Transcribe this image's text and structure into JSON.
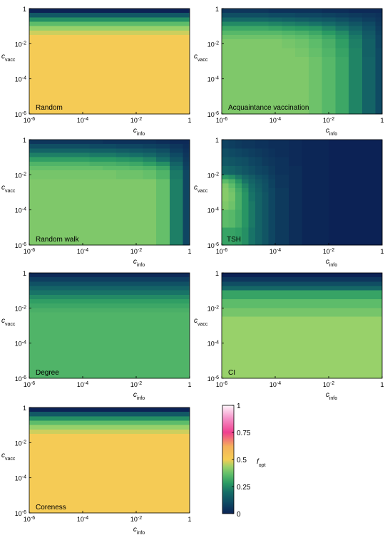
{
  "figure": {
    "colorbar": {
      "label_main": "f",
      "label_sub": "opt",
      "ticks": [
        {
          "value": 1,
          "label": "1"
        },
        {
          "value": 0.75,
          "label": "0.75"
        },
        {
          "value": 0.5,
          "label": "0.5"
        },
        {
          "value": 0.25,
          "label": "0.25"
        },
        {
          "value": 0,
          "label": "0"
        }
      ],
      "colormap": [
        {
          "v": 0.0,
          "color": "#0c2255"
        },
        {
          "v": 0.1,
          "color": "#0f4a63"
        },
        {
          "v": 0.2,
          "color": "#166e67"
        },
        {
          "v": 0.28,
          "color": "#2a9a63"
        },
        {
          "v": 0.36,
          "color": "#5dbc6a"
        },
        {
          "v": 0.43,
          "color": "#98d16a"
        },
        {
          "v": 0.5,
          "color": "#f5cd54"
        },
        {
          "v": 0.62,
          "color": "#f4b15b"
        },
        {
          "v": 0.75,
          "color": "#f03f8f"
        },
        {
          "v": 0.88,
          "color": "#f592c8"
        },
        {
          "v": 1.0,
          "color": "#fff6fb"
        }
      ]
    },
    "axis_ticks": {
      "x": [
        {
          "exp": -6,
          "base": "10",
          "sup": "-6"
        },
        {
          "exp": -4,
          "base": "10",
          "sup": "-4"
        },
        {
          "exp": -2,
          "base": "10",
          "sup": "-2"
        },
        {
          "exp": 0,
          "base": "1",
          "sup": ""
        }
      ],
      "y": [
        {
          "exp": 0,
          "base": "1",
          "sup": ""
        },
        {
          "exp": -2,
          "base": "10",
          "sup": "-2"
        },
        {
          "exp": -4,
          "base": "10",
          "sup": "-4"
        },
        {
          "exp": -6,
          "base": "10",
          "sup": "-6"
        }
      ],
      "xlabel_main": "c",
      "xlabel_sub": "info",
      "ylabel_main": "c",
      "ylabel_sub": "vacc"
    }
  },
  "chart_data": [
    {
      "type": "heatmap",
      "name": "Random",
      "xlabel": "c_info",
      "ylabel": "c_vacc",
      "x_log10_range": [
        -6,
        0
      ],
      "y_log10_range": [
        -6,
        0
      ],
      "colorbar_label": "f_opt",
      "vlim": [
        0,
        1
      ],
      "grid": false,
      "y_rows_top_to_bottom": [
        {
          "y_log10": [
            -0.25,
            0
          ],
          "f_opt": 0.0
        },
        {
          "y_log10": [
            -0.5,
            -0.25
          ],
          "f_opt": 0.14
        },
        {
          "y_log10": [
            -0.75,
            -0.5
          ],
          "f_opt": 0.26
        },
        {
          "y_log10": [
            -1.0,
            -0.75
          ],
          "f_opt": 0.36
        },
        {
          "y_log10": [
            -1.25,
            -1.0
          ],
          "f_opt": 0.43
        },
        {
          "y_log10": [
            -1.5,
            -1.25
          ],
          "f_opt": 0.47
        },
        {
          "y_log10": [
            -6,
            -1.5
          ],
          "f_opt": 0.51
        }
      ]
    },
    {
      "type": "heatmap",
      "name": "Acquaintance vaccination",
      "xlabel": "c_info",
      "ylabel": "c_vacc",
      "x_log10_range": [
        -6,
        0
      ],
      "y_log10_range": [
        -6,
        0
      ],
      "colorbar_label": "f_opt",
      "vlim": [
        0,
        1
      ],
      "grid": false,
      "x_boundaries_log10": [
        -6,
        -4.25,
        -3.75,
        -3.25,
        -2.75,
        -2.25,
        -1.75,
        -1.25,
        -0.75,
        -0.25,
        0
      ],
      "y_boundaries_log10_top_to_bottom": [
        0,
        -0.25,
        -0.5,
        -0.75,
        -1.0,
        -1.25,
        -1.5,
        -1.75,
        -2.25,
        -2.75,
        -6
      ],
      "f_opt": [
        [
          0.05,
          0.04,
          0.04,
          0.04,
          0.04,
          0.03,
          0.03,
          0.02,
          0.02,
          0.02
        ],
        [
          0.11,
          0.1,
          0.1,
          0.09,
          0.09,
          0.08,
          0.07,
          0.06,
          0.05,
          0.04
        ],
        [
          0.18,
          0.17,
          0.16,
          0.15,
          0.14,
          0.13,
          0.11,
          0.09,
          0.07,
          0.05
        ],
        [
          0.25,
          0.24,
          0.23,
          0.22,
          0.21,
          0.19,
          0.16,
          0.13,
          0.1,
          0.06
        ],
        [
          0.31,
          0.3,
          0.29,
          0.28,
          0.27,
          0.24,
          0.21,
          0.17,
          0.12,
          0.07
        ],
        [
          0.35,
          0.35,
          0.34,
          0.33,
          0.31,
          0.28,
          0.25,
          0.2,
          0.14,
          0.08
        ],
        [
          0.38,
          0.38,
          0.37,
          0.36,
          0.34,
          0.31,
          0.27,
          0.22,
          0.15,
          0.09
        ],
        [
          0.4,
          0.4,
          0.39,
          0.38,
          0.36,
          0.33,
          0.29,
          0.23,
          0.16,
          0.09
        ],
        [
          0.4,
          0.4,
          0.4,
          0.39,
          0.37,
          0.34,
          0.3,
          0.24,
          0.16,
          0.1
        ],
        [
          0.4,
          0.4,
          0.4,
          0.4,
          0.38,
          0.35,
          0.31,
          0.24,
          0.17,
          0.1
        ]
      ]
    },
    {
      "type": "heatmap",
      "name": "Random walk",
      "xlabel": "c_info",
      "ylabel": "c_vacc",
      "x_log10_range": [
        -6,
        0
      ],
      "y_log10_range": [
        -6,
        0
      ],
      "colorbar_label": "f_opt",
      "vlim": [
        0,
        1
      ],
      "grid": false,
      "x_boundaries_log10": [
        -6,
        -3.75,
        -3.25,
        -2.75,
        -2.25,
        -1.75,
        -1.25,
        -0.75,
        -0.25,
        0
      ],
      "y_boundaries_log10_top_to_bottom": [
        0,
        -0.25,
        -0.5,
        -0.75,
        -1.0,
        -1.25,
        -1.5,
        -1.75,
        -2.25,
        -6
      ],
      "f_opt": [
        [
          0.05,
          0.05,
          0.04,
          0.04,
          0.04,
          0.04,
          0.03,
          0.02,
          0.02
        ],
        [
          0.11,
          0.1,
          0.1,
          0.09,
          0.09,
          0.08,
          0.07,
          0.05,
          0.03
        ],
        [
          0.17,
          0.16,
          0.16,
          0.15,
          0.14,
          0.13,
          0.11,
          0.07,
          0.04
        ],
        [
          0.23,
          0.22,
          0.22,
          0.21,
          0.2,
          0.18,
          0.15,
          0.1,
          0.05
        ],
        [
          0.29,
          0.28,
          0.28,
          0.27,
          0.26,
          0.24,
          0.2,
          0.13,
          0.06
        ],
        [
          0.34,
          0.33,
          0.33,
          0.32,
          0.31,
          0.29,
          0.26,
          0.17,
          0.07
        ],
        [
          0.37,
          0.37,
          0.36,
          0.36,
          0.35,
          0.34,
          0.31,
          0.2,
          0.08
        ],
        [
          0.39,
          0.39,
          0.39,
          0.38,
          0.38,
          0.37,
          0.34,
          0.22,
          0.09
        ],
        [
          0.4,
          0.4,
          0.4,
          0.4,
          0.4,
          0.4,
          0.37,
          0.23,
          0.09
        ]
      ]
    },
    {
      "type": "heatmap",
      "name": "TSH",
      "xlabel": "c_info",
      "ylabel": "c_vacc",
      "x_log10_range": [
        -6,
        0
      ],
      "y_log10_range": [
        -6,
        0
      ],
      "colorbar_label": "f_opt",
      "vlim": [
        0,
        1
      ],
      "grid": false,
      "x_boundaries_log10": [
        -6,
        -5.75,
        -5.5,
        -5.25,
        -5.0,
        -4.75,
        -4.5,
        -4.25,
        -4.0,
        -3.5,
        -3.0,
        -2.0,
        0
      ],
      "y_boundaries_log10_top_to_bottom": [
        0,
        -0.5,
        -1.0,
        -1.5,
        -2.0,
        -2.25,
        -2.5,
        -2.75,
        -3.0,
        -3.5,
        -4.0,
        -5.0,
        -6
      ],
      "f_opt": [
        [
          0.08,
          0.07,
          0.06,
          0.05,
          0.05,
          0.04,
          0.04,
          0.03,
          0.03,
          0.02,
          0.01,
          0.0
        ],
        [
          0.11,
          0.1,
          0.09,
          0.08,
          0.07,
          0.06,
          0.05,
          0.04,
          0.03,
          0.02,
          0.01,
          0.0
        ],
        [
          0.14,
          0.13,
          0.12,
          0.11,
          0.09,
          0.08,
          0.06,
          0.05,
          0.04,
          0.02,
          0.01,
          0.0
        ],
        [
          0.18,
          0.17,
          0.15,
          0.13,
          0.11,
          0.09,
          0.08,
          0.06,
          0.04,
          0.03,
          0.01,
          0.0
        ],
        [
          0.28,
          0.26,
          0.22,
          0.18,
          0.15,
          0.12,
          0.1,
          0.07,
          0.05,
          0.03,
          0.01,
          0.0
        ],
        [
          0.36,
          0.33,
          0.27,
          0.21,
          0.17,
          0.14,
          0.11,
          0.08,
          0.05,
          0.03,
          0.01,
          0.0
        ],
        [
          0.4,
          0.36,
          0.3,
          0.24,
          0.19,
          0.15,
          0.12,
          0.08,
          0.05,
          0.03,
          0.01,
          0.0
        ],
        [
          0.41,
          0.38,
          0.32,
          0.26,
          0.2,
          0.16,
          0.12,
          0.09,
          0.06,
          0.03,
          0.01,
          0.0
        ],
        [
          0.41,
          0.39,
          0.33,
          0.27,
          0.21,
          0.17,
          0.13,
          0.09,
          0.06,
          0.03,
          0.01,
          0.0
        ],
        [
          0.4,
          0.38,
          0.33,
          0.27,
          0.22,
          0.17,
          0.13,
          0.09,
          0.06,
          0.03,
          0.01,
          0.0
        ],
        [
          0.36,
          0.35,
          0.32,
          0.27,
          0.22,
          0.17,
          0.13,
          0.09,
          0.06,
          0.03,
          0.01,
          0.0
        ],
        [
          0.3,
          0.3,
          0.29,
          0.26,
          0.21,
          0.17,
          0.13,
          0.09,
          0.06,
          0.03,
          0.01,
          0.0
        ]
      ]
    },
    {
      "type": "heatmap",
      "name": "Degree",
      "xlabel": "c_info",
      "ylabel": "c_vacc",
      "x_log10_range": [
        -6,
        0
      ],
      "y_log10_range": [
        -6,
        0
      ],
      "colorbar_label": "f_opt",
      "vlim": [
        0,
        1
      ],
      "grid": false,
      "y_rows_top_to_bottom": [
        {
          "y_log10": [
            -0.25,
            0
          ],
          "f_opt": 0.02
        },
        {
          "y_log10": [
            -0.5,
            -0.25
          ],
          "f_opt": 0.07
        },
        {
          "y_log10": [
            -0.75,
            -0.5
          ],
          "f_opt": 0.12
        },
        {
          "y_log10": [
            -1.0,
            -0.75
          ],
          "f_opt": 0.17
        },
        {
          "y_log10": [
            -1.25,
            -1.0
          ],
          "f_opt": 0.21
        },
        {
          "y_log10": [
            -1.5,
            -1.25
          ],
          "f_opt": 0.25
        },
        {
          "y_log10": [
            -1.75,
            -1.5
          ],
          "f_opt": 0.29
        },
        {
          "y_log10": [
            -2.0,
            -1.75
          ],
          "f_opt": 0.31
        },
        {
          "y_log10": [
            -2.25,
            -2.0
          ],
          "f_opt": 0.33
        },
        {
          "y_log10": [
            -6,
            -2.25
          ],
          "f_opt": 0.34
        }
      ]
    },
    {
      "type": "heatmap",
      "name": "CI",
      "xlabel": "c_info",
      "ylabel": "c_vacc",
      "x_log10_range": [
        -6,
        0
      ],
      "y_log10_range": [
        -6,
        0
      ],
      "colorbar_label": "f_opt",
      "vlim": [
        0,
        1
      ],
      "grid": false,
      "y_rows_top_to_bottom": [
        {
          "y_log10": [
            -0.25,
            0
          ],
          "f_opt": 0.0
        },
        {
          "y_log10": [
            -0.5,
            -0.25
          ],
          "f_opt": 0.05
        },
        {
          "y_log10": [
            -0.75,
            -0.5
          ],
          "f_opt": 0.11
        },
        {
          "y_log10": [
            -1.0,
            -0.75
          ],
          "f_opt": 0.18
        },
        {
          "y_log10": [
            -1.5,
            -1.0
          ],
          "f_opt": 0.3
        },
        {
          "y_log10": [
            -2.0,
            -1.5
          ],
          "f_opt": 0.36
        },
        {
          "y_log10": [
            -2.5,
            -2.0
          ],
          "f_opt": 0.39
        },
        {
          "y_log10": [
            -6,
            -2.5
          ],
          "f_opt": 0.43
        }
      ]
    },
    {
      "type": "heatmap",
      "name": "Coreness",
      "xlabel": "c_info",
      "ylabel": "c_vacc",
      "x_log10_range": [
        -6,
        0
      ],
      "y_log10_range": [
        -6,
        0
      ],
      "colorbar_label": "f_opt",
      "vlim": [
        0,
        1
      ],
      "grid": false,
      "y_rows_top_to_bottom": [
        {
          "y_log10": [
            -0.25,
            0
          ],
          "f_opt": 0.0
        },
        {
          "y_log10": [
            -0.5,
            -0.25
          ],
          "f_opt": 0.14
        },
        {
          "y_log10": [
            -0.75,
            -0.5
          ],
          "f_opt": 0.26
        },
        {
          "y_log10": [
            -1.0,
            -0.75
          ],
          "f_opt": 0.36
        },
        {
          "y_log10": [
            -1.25,
            -1.0
          ],
          "f_opt": 0.43
        },
        {
          "y_log10": [
            -1.5,
            -1.25
          ],
          "f_opt": 0.47
        },
        {
          "y_log10": [
            -6,
            -1.5
          ],
          "f_opt": 0.51
        }
      ]
    }
  ]
}
